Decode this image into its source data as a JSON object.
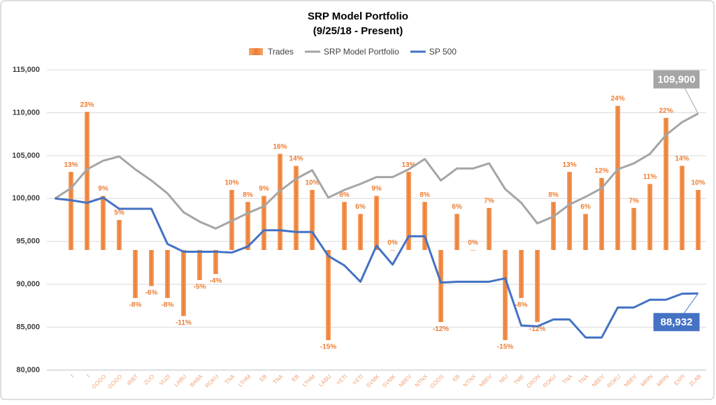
{
  "chart_data": {
    "type": "bar",
    "title": "SRP Model Portfolio",
    "subtitle": "(9/25/18 - Present)",
    "categories": [
      null,
      "I",
      "I",
      "GOGO",
      "GOGO",
      "IRBT",
      "ZUO",
      "VUZI",
      "LABU",
      "BABA",
      "ROKU",
      "TNA",
      "LTHM",
      "EB",
      "TNA",
      "EB",
      "LTHM",
      "LABU",
      "YETI",
      "YETI",
      "SVMK",
      "SVMK",
      "NBEV",
      "NTNX",
      "GOOS",
      "EB",
      "NTNX",
      "NBEV",
      "NIU",
      "TME",
      "CRON",
      "ROKU",
      "TNA",
      "TNA",
      "NBEV",
      "ROKU",
      "NBEV",
      "MRIN",
      "MRIN",
      "EXPI",
      "ZLAB"
    ],
    "ylim": [
      80000,
      115000
    ],
    "yticks": [
      {
        "value": 80000,
        "label": "80,000"
      },
      {
        "value": 85000,
        "label": "85,000"
      },
      {
        "value": 90000,
        "label": "90,000"
      },
      {
        "value": 95000,
        "label": "95,000"
      },
      {
        "value": 100000,
        "label": "100,000"
      },
      {
        "value": 105000,
        "label": "105,000"
      },
      {
        "value": 110000,
        "label": "110,000"
      },
      {
        "value": 115000,
        "label": "115,000"
      }
    ],
    "y2lim": [
      -20,
      30
    ],
    "grid": true,
    "legend": "top",
    "series": [
      {
        "name": "Trades",
        "type": "bar",
        "axis": "y2",
        "color": "#ed7d31",
        "values": [
          null,
          13,
          23,
          9,
          5,
          -8,
          -6,
          -8,
          -11,
          -5,
          -4,
          10,
          8,
          9,
          16,
          14,
          10,
          -15,
          8,
          6,
          9,
          0,
          13,
          8,
          -12,
          6,
          0,
          7,
          -15,
          -8,
          -12,
          8,
          13,
          6,
          12,
          24,
          7,
          11,
          22,
          14,
          10
        ],
        "value_labels": [
          null,
          "13%",
          "23%",
          "9%",
          "5%",
          "-8%",
          "-6%",
          "-8%",
          "-11%",
          "-5%",
          "-4%",
          "10%",
          "8%",
          "9%",
          "16%",
          "14%",
          "10%",
          "-15%",
          "8%",
          "6%",
          "9%",
          "0%",
          "13%",
          "8%",
          "-12%",
          "6%",
          "0%",
          "7%",
          "-15%",
          "-8%",
          "-12%",
          "8%",
          "13%",
          "6%",
          "12%",
          "24%",
          "7%",
          "11%",
          "22%",
          "14%",
          "10%"
        ]
      },
      {
        "name": "SRP Model Portfolio",
        "type": "line",
        "color": "#a5a5a5",
        "values": [
          100000,
          101200,
          103400,
          104400,
          104900,
          103400,
          102100,
          100600,
          98400,
          97300,
          96500,
          97400,
          98300,
          99100,
          100900,
          102300,
          103300,
          100100,
          101000,
          101700,
          102500,
          102500,
          103400,
          104600,
          102100,
          103500,
          103500,
          104100,
          101100,
          99500,
          97100,
          97900,
          99300,
          100200,
          101200,
          103400,
          104100,
          105200,
          107400,
          108900,
          109900
        ],
        "value_labels": [
          null,
          null,
          null,
          null,
          null,
          null,
          null,
          null,
          null,
          null,
          null,
          null,
          null,
          null,
          null,
          null,
          null,
          null,
          null,
          null,
          null,
          null,
          null,
          null,
          null,
          null,
          null,
          null,
          null,
          null,
          null,
          null,
          null,
          null,
          null,
          null,
          null,
          null,
          null,
          null,
          "109,900"
        ]
      },
      {
        "name": "SP 500",
        "type": "line",
        "color": "#4472c4",
        "values": [
          100000,
          99800,
          99500,
          100100,
          98800,
          98800,
          98800,
          94700,
          93800,
          93800,
          93800,
          93700,
          94400,
          96300,
          96300,
          96100,
          96100,
          93300,
          92200,
          90300,
          94500,
          92300,
          95600,
          95600,
          90200,
          90300,
          90300,
          90300,
          90700,
          85200,
          85100,
          85900,
          85900,
          83800,
          83800,
          87300,
          87300,
          88200,
          88200,
          88900,
          88932
        ],
        "value_labels": [
          null,
          null,
          null,
          null,
          null,
          null,
          null,
          null,
          null,
          null,
          null,
          null,
          null,
          null,
          null,
          null,
          null,
          null,
          null,
          null,
          null,
          null,
          null,
          null,
          null,
          null,
          null,
          null,
          null,
          null,
          null,
          null,
          null,
          null,
          null,
          null,
          null,
          null,
          null,
          null,
          "88,932"
        ]
      }
    ]
  }
}
